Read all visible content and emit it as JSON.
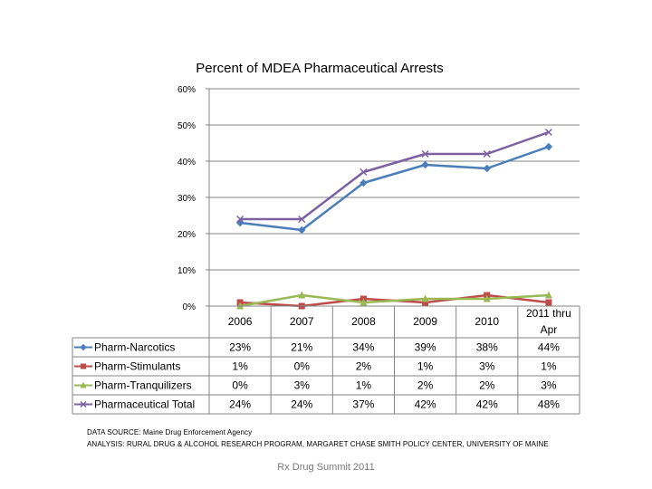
{
  "chart_data": {
    "type": "line",
    "title": "Percent of MDEA Pharmaceutical Arrests",
    "categories": [
      "2006",
      "2007",
      "2008",
      "2009",
      "2010",
      "2011 thru Apr"
    ],
    "ylim": [
      0,
      60
    ],
    "yticks": [
      0,
      10,
      20,
      30,
      40,
      50,
      60
    ],
    "ytick_labels": [
      "0%",
      "10%",
      "20%",
      "30%",
      "40%",
      "50%",
      "60%"
    ],
    "grid": true,
    "legend": "left, within data table",
    "series": [
      {
        "name": "Pharm-Narcotics",
        "color": "#4a7ebb",
        "marker": "diamond",
        "values": [
          23,
          21,
          34,
          39,
          38,
          44
        ],
        "labels": [
          "23%",
          "21%",
          "34%",
          "39%",
          "38%",
          "44%"
        ]
      },
      {
        "name": "Pharm-Stimulants",
        "color": "#be4b48",
        "marker": "square",
        "values": [
          1,
          0,
          2,
          1,
          3,
          1
        ],
        "labels": [
          "1%",
          "0%",
          "2%",
          "1%",
          "3%",
          "1%"
        ]
      },
      {
        "name": "Pharm-Tranquilizers",
        "color": "#98b954",
        "marker": "triangle",
        "values": [
          0,
          3,
          1,
          2,
          2,
          3
        ],
        "labels": [
          "0%",
          "3%",
          "1%",
          "2%",
          "2%",
          "3%"
        ]
      },
      {
        "name": "Pharmaceutical Total",
        "color": "#7d60a0",
        "marker": "x",
        "values": [
          24,
          24,
          37,
          42,
          42,
          48
        ],
        "labels": [
          "24%",
          "24%",
          "37%",
          "42%",
          "42%",
          "48%"
        ]
      }
    ]
  },
  "source": {
    "data_source": "DATA SOURCE: Maine Drug Enforcement Agency",
    "analysis": "ANALYSIS: RURAL DRUG & ALCOHOL RESEARCH PROGRAM, MARGARET CHASE SMITH POLICY CENTER, UNIVERSITY OF MAINE"
  },
  "footer": "Rx Drug Summit 2011"
}
